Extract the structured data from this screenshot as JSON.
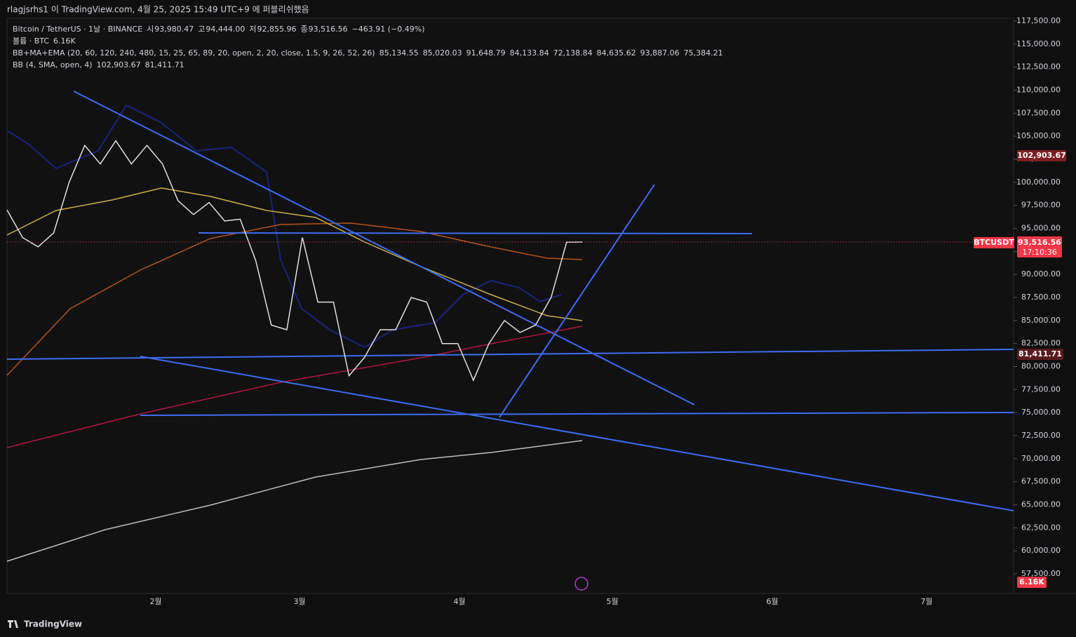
{
  "header": {
    "publisher": "rlagjsrhs1 이 TradingView.com, 4월 25, 2025 15:49 UTC+9 에 퍼블리쉬했음"
  },
  "legend": {
    "symbol": "Bitcoin / TetherUS · 1날 · BINANCE",
    "ohlc": [
      {
        "label": "시",
        "value": "93,980.47"
      },
      {
        "label": "고",
        "value": "94,444.00"
      },
      {
        "label": "저",
        "value": "92,855.96"
      },
      {
        "label": "종",
        "value": "93,516.56"
      }
    ],
    "change": "−463.91 (−0.49%)",
    "volume_name": "볼륨 · BTC",
    "volume_value": "6.16K",
    "indicator1": "BB+MA+EMA (20, 60, 120, 240, 480, 15, 25, 65, 89, 20, open, 2, 20, close, 1.5, 9, 26, 52, 26)",
    "indicator1_values": [
      {
        "text": "85,134.55",
        "color": "#4caf50"
      },
      {
        "text": "85,020.03",
        "color": "#ffeb3b"
      },
      {
        "text": "91,648.79",
        "color": "#f57c00"
      },
      {
        "text": "84,133.84",
        "color": "#e53935"
      },
      {
        "text": "72,138.84",
        "color": "#ffffff"
      },
      {
        "text": "84,635.62",
        "color": "#ffffff"
      },
      {
        "text": "93,887.06",
        "color": "#1a237e"
      },
      {
        "text": "75,384.21",
        "color": "#1a237e"
      }
    ],
    "indicator2": "BB (4, SMA, open, 4)",
    "indicator2_values": [
      {
        "text": "102,903.67",
        "color": "#8e2b2b"
      },
      {
        "text": "81,411.71",
        "color": "#8e2b2b"
      }
    ]
  },
  "badges": {
    "bb_upper": "102,903.67",
    "symbol": "BTCUSDT",
    "last_price": "93,516.56",
    "countdown": "17:10:36",
    "bb_lower": "81,411.71",
    "volume": "6.16K"
  },
  "footer": {
    "brand": "TradingView"
  },
  "chart_data": {
    "type": "line",
    "color": "#d0d0d0",
    "series": [
      {
        "name": "BTCUSDT",
        "color": "#e0e0e0",
        "values": [
          97000,
          94000,
          93000,
          94500,
          100000,
          104000,
          102000,
          104500,
          102000,
          104000,
          102000,
          98000,
          96500,
          97800,
          95800,
          96000,
          91500,
          84500,
          84000,
          94000,
          87000,
          87000,
          79000,
          81000,
          84000,
          84000,
          87500,
          87000,
          82500,
          82500,
          78500,
          82500,
          85000,
          83700,
          84500,
          87500,
          93500,
          93516.56
        ]
      }
    ],
    "ylim": [
      57500,
      117500
    ],
    "yticks": [
      {
        "value": 57500,
        "label": "57,500.00"
      },
      {
        "value": 60000,
        "label": "60,000.00"
      },
      {
        "value": 62500,
        "label": "62,500.00"
      },
      {
        "value": 65000,
        "label": "65,000.00"
      },
      {
        "value": 67500,
        "label": "67,500.00"
      },
      {
        "value": 70000,
        "label": "70,000.00"
      },
      {
        "value": 72500,
        "label": "72,500.00"
      },
      {
        "value": 75000,
        "label": "75,000.00"
      },
      {
        "value": 77500,
        "label": "77,500.00"
      },
      {
        "value": 80000,
        "label": "80,000.00"
      },
      {
        "value": 82500,
        "label": "82,500.00"
      },
      {
        "value": 85000,
        "label": "85,000.00"
      },
      {
        "value": 87500,
        "label": "87,500.00"
      },
      {
        "value": 90000,
        "label": "90,000.00"
      },
      {
        "value": 92500,
        "label": "92,500.00"
      },
      {
        "value": 95000,
        "label": "95,000.00"
      },
      {
        "value": 97500,
        "label": "97,500.00"
      },
      {
        "value": 100000,
        "label": "100,000.00"
      },
      {
        "value": 102500,
        "label": "102,500.00"
      },
      {
        "value": 105000,
        "label": "105,000.00"
      },
      {
        "value": 107500,
        "label": "107,500.00"
      },
      {
        "value": 110000,
        "label": "110,000.00"
      },
      {
        "value": 112500,
        "label": "112,500.00"
      },
      {
        "value": 115000,
        "label": "115,000.00"
      },
      {
        "value": 117500,
        "label": "117,500.00"
      }
    ],
    "months": [
      "2월",
      "3월",
      "4월",
      "5월",
      "6월",
      "7월"
    ]
  }
}
